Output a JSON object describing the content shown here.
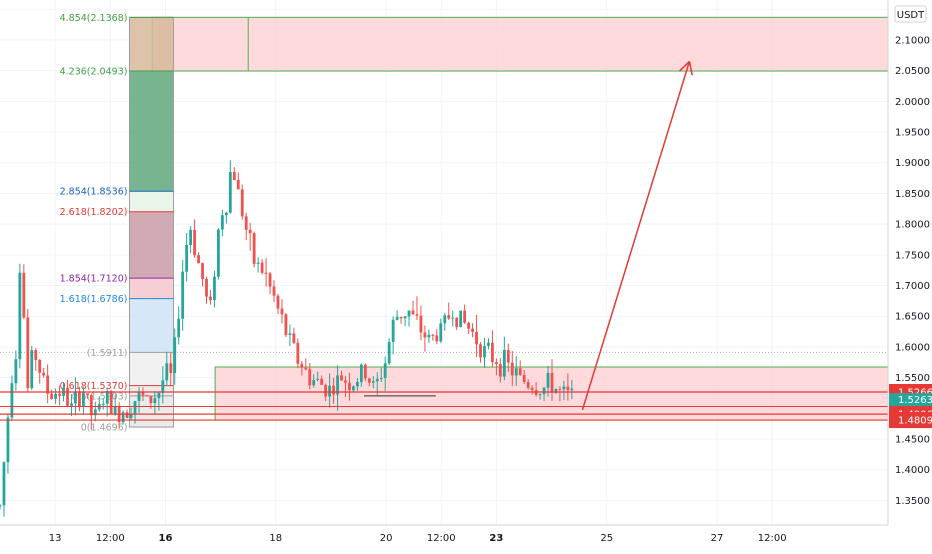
{
  "currency": "USDT",
  "colors": {
    "up": "#26a69a",
    "down": "#ef5350",
    "zone_fill": "#ffcdd2",
    "zone_border": "#4caf50",
    "hline": "#e53935",
    "arrow": "#e53935",
    "grid": "#f0f3fa",
    "axis_text": "#131722",
    "fib_green": "#43a047",
    "fib_blue": "#1565c0",
    "fib_red": "#e53935",
    "fib_purple": "#8e24aa",
    "fib_lightblue": "#1e88e5",
    "fib_gray": "#9e9e9e"
  },
  "chart_data": {
    "type": "candlestick",
    "ylim": [
      1.31,
      2.165
    ],
    "y_ticks": [
      "1.3500",
      "1.4000",
      "1.4500",
      "1.5000",
      "1.5500",
      "1.6000",
      "1.6500",
      "1.7000",
      "1.7500",
      "1.8000",
      "1.8500",
      "1.9000",
      "1.9500",
      "2.0000",
      "2.0500",
      "2.1000",
      "2.1500"
    ],
    "x_ticks": [
      {
        "label": "13",
        "x": 0.5,
        "bold": false
      },
      {
        "label": "12:00",
        "x": 1.0,
        "bold": false
      },
      {
        "label": "16",
        "x": 1.5,
        "bold": true
      },
      {
        "label": "18",
        "x": 2.5,
        "bold": false
      },
      {
        "label": "20",
        "x": 3.5,
        "bold": false
      },
      {
        "label": "12:00",
        "x": 4.0,
        "bold": false
      },
      {
        "label": "23",
        "x": 4.5,
        "bold": true
      },
      {
        "label": "25",
        "x": 5.5,
        "bold": false
      },
      {
        "label": "27",
        "x": 6.5,
        "bold": false
      },
      {
        "label": "12:00",
        "x": 7.0,
        "bold": false
      }
    ],
    "x_range": [
      0.0,
      8.05
    ],
    "series_points": [
      [
        0.0,
        1.34
      ],
      [
        0.05,
        1.44
      ],
      [
        0.1,
        1.55
      ],
      [
        0.15,
        1.6
      ],
      [
        0.2,
        1.82
      ],
      [
        0.23,
        1.5
      ],
      [
        0.3,
        1.6
      ],
      [
        0.38,
        1.55
      ],
      [
        0.45,
        1.52
      ],
      [
        0.55,
        1.53
      ],
      [
        0.65,
        1.5
      ],
      [
        0.75,
        1.53
      ],
      [
        0.85,
        1.48
      ],
      [
        0.95,
        1.52
      ],
      [
        1.05,
        1.49
      ],
      [
        1.15,
        1.5
      ],
      [
        1.25,
        1.52
      ],
      [
        1.35,
        1.51
      ],
      [
        1.45,
        1.53
      ],
      [
        1.5,
        1.56
      ],
      [
        1.55,
        1.55
      ],
      [
        1.6,
        1.62
      ],
      [
        1.65,
        1.72
      ],
      [
        1.72,
        1.8
      ],
      [
        1.78,
        1.75
      ],
      [
        1.85,
        1.7
      ],
      [
        1.9,
        1.65
      ],
      [
        1.95,
        1.74
      ],
      [
        2.0,
        1.82
      ],
      [
        2.05,
        1.83
      ],
      [
        2.1,
        1.9
      ],
      [
        2.15,
        1.86
      ],
      [
        2.22,
        1.8
      ],
      [
        2.3,
        1.74
      ],
      [
        2.4,
        1.72
      ],
      [
        2.5,
        1.67
      ],
      [
        2.6,
        1.62
      ],
      [
        2.7,
        1.58
      ],
      [
        2.8,
        1.55
      ],
      [
        2.9,
        1.54
      ],
      [
        3.0,
        1.53
      ],
      [
        3.1,
        1.55
      ],
      [
        3.2,
        1.54
      ],
      [
        3.3,
        1.56
      ],
      [
        3.4,
        1.53
      ],
      [
        3.5,
        1.58
      ],
      [
        3.55,
        1.63
      ],
      [
        3.6,
        1.65
      ],
      [
        3.7,
        1.66
      ],
      [
        3.8,
        1.63
      ],
      [
        3.9,
        1.61
      ],
      [
        4.0,
        1.63
      ],
      [
        4.1,
        1.66
      ],
      [
        4.2,
        1.64
      ],
      [
        4.3,
        1.62
      ],
      [
        4.4,
        1.59
      ],
      [
        4.5,
        1.58
      ],
      [
        4.6,
        1.57
      ],
      [
        4.7,
        1.55
      ],
      [
        4.8,
        1.54
      ],
      [
        4.9,
        1.53
      ],
      [
        5.0,
        1.54
      ],
      [
        5.1,
        1.52
      ],
      [
        5.2,
        1.52
      ]
    ],
    "current_price": "1.5263",
    "countdown": "41:03",
    "price_labels": [
      {
        "label": "1.5266",
        "value": 1.5266,
        "kind": "hline"
      },
      {
        "label": "1.4906",
        "value": 1.4906,
        "kind": "hline"
      },
      {
        "label": "1.4809",
        "value": 1.4809,
        "kind": "hline"
      }
    ],
    "fib_levels": [
      {
        "text": "4.854(2.1368)",
        "value": 2.1368,
        "color": "fib_green"
      },
      {
        "text": "4.236(2.0493)",
        "value": 2.0493,
        "color": "fib_green"
      },
      {
        "text": "2.854(1.8536)",
        "value": 1.8536,
        "color": "fib_blue"
      },
      {
        "text": "2.618(1.8202)",
        "value": 1.8202,
        "color": "fib_red"
      },
      {
        "text": "1.854(1.7120)",
        "value": 1.712,
        "color": "fib_purple"
      },
      {
        "text": "1.618(1.6786)",
        "value": 1.6786,
        "color": "fib_lightblue"
      },
      {
        "text": "(1.5911)",
        "value": 1.5911,
        "color": "fib_gray"
      },
      {
        "text": "0.618(1.5370)",
        "value": 1.537,
        "color": "fib_red"
      },
      {
        "text": "0.5(1.5203)",
        "value": 1.5203,
        "color": "fib_gray"
      },
      {
        "text": "0(1.4695)",
        "value": 1.4695,
        "color": "fib_gray"
      }
    ],
    "target_zone": {
      "top": 2.1368,
      "bottom": 2.0493
    },
    "support_zone": {
      "top": 1.5673,
      "bottom": 1.4809
    },
    "arrow": {
      "from": [
        5.28,
        1.4975
      ],
      "to": [
        6.25,
        2.065
      ]
    }
  }
}
